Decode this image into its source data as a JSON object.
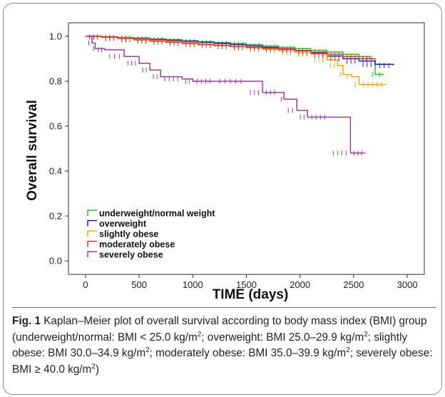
{
  "chart_data": {
    "type": "line",
    "xlabel": "TIME (days)",
    "ylabel": "Overall survival",
    "xlim": [
      0,
      3000
    ],
    "ylim": [
      0.0,
      1.0
    ],
    "xticks": [
      0,
      500,
      1000,
      1500,
      2000,
      2500,
      3000
    ],
    "yticks": [
      0.0,
      0.2,
      0.4,
      0.6,
      0.8,
      1.0
    ],
    "ytick_labels": [
      "0.0",
      "0.2",
      "0.4",
      "0.6",
      "0.8",
      "1.0"
    ],
    "grid": false,
    "legend_position": "bottom-left",
    "series": [
      {
        "name": "underweight/normal weight",
        "color": "#22c422",
        "x": [
          0,
          150,
          300,
          450,
          600,
          750,
          900,
          1050,
          1200,
          1350,
          1500,
          1650,
          1800,
          1950,
          2100,
          2250,
          2400,
          2550,
          2650,
          2700,
          2780
        ],
        "y": [
          1.0,
          0.998,
          0.995,
          0.992,
          0.988,
          0.985,
          0.98,
          0.976,
          0.972,
          0.968,
          0.963,
          0.957,
          0.951,
          0.945,
          0.938,
          0.93,
          0.92,
          0.91,
          0.9,
          0.83,
          0.83
        ]
      },
      {
        "name": "overweight",
        "color": "#1a1ad4",
        "x": [
          0,
          150,
          300,
          450,
          600,
          750,
          900,
          1050,
          1200,
          1350,
          1500,
          1650,
          1800,
          1950,
          2100,
          2250,
          2400,
          2550,
          2700,
          2870
        ],
        "y": [
          1.0,
          0.997,
          0.993,
          0.99,
          0.986,
          0.982,
          0.978,
          0.973,
          0.968,
          0.963,
          0.957,
          0.951,
          0.944,
          0.935,
          0.925,
          0.912,
          0.9,
          0.89,
          0.875,
          0.87
        ]
      },
      {
        "name": "slightly obese",
        "color": "#ffa500",
        "x": [
          0,
          150,
          300,
          450,
          600,
          750,
          900,
          1050,
          1200,
          1350,
          1500,
          1650,
          1800,
          1950,
          2100,
          2250,
          2350,
          2400,
          2480,
          2550,
          2800
        ],
        "y": [
          1.0,
          0.996,
          0.992,
          0.987,
          0.982,
          0.977,
          0.972,
          0.966,
          0.96,
          0.954,
          0.948,
          0.942,
          0.935,
          0.928,
          0.92,
          0.895,
          0.87,
          0.83,
          0.82,
          0.785,
          0.785
        ]
      },
      {
        "name": "moderately obese",
        "color": "#e8352c",
        "x": [
          0,
          150,
          300,
          450,
          600,
          750,
          900,
          1050,
          1200,
          1350,
          1500,
          1650,
          1800,
          1950,
          2100,
          2250,
          2400,
          2550,
          2700
        ],
        "y": [
          1.0,
          0.996,
          0.99,
          0.984,
          0.978,
          0.973,
          0.968,
          0.963,
          0.958,
          0.954,
          0.95,
          0.946,
          0.942,
          0.937,
          0.93,
          0.92,
          0.91,
          0.9,
          0.9
        ]
      },
      {
        "name": "severely obese",
        "color": "#a03ca0",
        "x": [
          0,
          60,
          90,
          180,
          360,
          500,
          600,
          700,
          900,
          1000,
          1200,
          1500,
          1650,
          1800,
          1850,
          1970,
          2070,
          2270,
          2470,
          2610
        ],
        "y": [
          1.0,
          0.97,
          0.945,
          0.94,
          0.91,
          0.88,
          0.85,
          0.82,
          0.81,
          0.8,
          0.8,
          0.8,
          0.75,
          0.75,
          0.72,
          0.67,
          0.64,
          0.64,
          0.48,
          0.48
        ]
      }
    ]
  },
  "caption": {
    "fig_label": "Fig. 1",
    "t1": " Kaplan–Meier plot of overall survival according to body mass index (BMI) group (underweight/normal: BMI < 25.0 kg/m",
    "s1": "2",
    "t2": "; overweight: BMI 25.0–29.9 kg/m",
    "s2": "2",
    "t3": "; slightly obese: BMI 30.0–34.9 kg/m",
    "s3": "2",
    "t4": "; moderately obese: BMI 35.0–39.9 kg/m",
    "s4": "2",
    "t5": "; severely obese: BMI ≥ 40.0 kg/m",
    "s5": "2",
    "t6": ")"
  }
}
